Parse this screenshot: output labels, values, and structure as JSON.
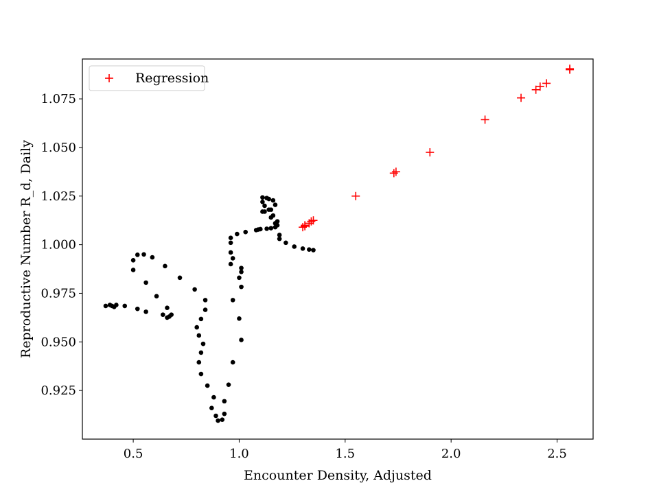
{
  "chart_data": {
    "type": "scatter",
    "title": "",
    "xlabel": "Encounter Density, Adjusted",
    "ylabel": "Reproductive Number R_d, Daily",
    "xlim": [
      0.26,
      2.67
    ],
    "ylim": [
      0.9,
      1.0955
    ],
    "xticks": [
      0.5,
      1.0,
      1.5,
      2.0,
      2.5
    ],
    "xtick_labels": [
      "0.5",
      "1.0",
      "1.5",
      "2.0",
      "2.5"
    ],
    "yticks": [
      0.925,
      0.95,
      0.975,
      1.0,
      1.025,
      1.05,
      1.075
    ],
    "ytick_labels": [
      "0.925",
      "0.950",
      "0.975",
      "1.000",
      "1.025",
      "1.050",
      "1.075"
    ],
    "grid": false,
    "legend_position": "top-left",
    "series": [
      {
        "marker": "circle",
        "color": "#000000",
        "points": [
          [
            0.37,
            0.9685
          ],
          [
            0.39,
            0.969
          ],
          [
            0.4,
            0.9685
          ],
          [
            0.41,
            0.968
          ],
          [
            0.42,
            0.969
          ],
          [
            0.46,
            0.9685
          ],
          [
            0.52,
            0.967
          ],
          [
            0.56,
            0.9655
          ],
          [
            0.64,
            0.964
          ],
          [
            0.66,
            0.9625
          ],
          [
            0.67,
            0.963
          ],
          [
            0.68,
            0.964
          ],
          [
            0.66,
            0.9675
          ],
          [
            0.61,
            0.9735
          ],
          [
            0.56,
            0.9805
          ],
          [
            0.5,
            0.987
          ],
          [
            0.5,
            0.992
          ],
          [
            0.52,
            0.9948
          ],
          [
            0.55,
            0.995
          ],
          [
            0.59,
            0.9935
          ],
          [
            0.65,
            0.989
          ],
          [
            0.72,
            0.983
          ],
          [
            0.79,
            0.977
          ],
          [
            0.84,
            0.9715
          ],
          [
            0.84,
            0.9665
          ],
          [
            0.82,
            0.9618
          ],
          [
            0.8,
            0.9575
          ],
          [
            0.81,
            0.9533
          ],
          [
            0.83,
            0.949
          ],
          [
            0.82,
            0.9445
          ],
          [
            0.81,
            0.9395
          ],
          [
            0.82,
            0.9335
          ],
          [
            0.85,
            0.9275
          ],
          [
            0.88,
            0.9215
          ],
          [
            0.87,
            0.916
          ],
          [
            0.89,
            0.912
          ],
          [
            0.9,
            0.9095
          ],
          [
            0.92,
            0.91
          ],
          [
            0.93,
            0.913
          ],
          [
            0.93,
            0.9195
          ],
          [
            0.95,
            0.928
          ],
          [
            0.97,
            0.9395
          ],
          [
            1.01,
            0.951
          ],
          [
            1.0,
            0.962
          ],
          [
            0.97,
            0.9715
          ],
          [
            1.01,
            0.9783
          ],
          [
            1.01,
            0.986
          ],
          [
            1.01,
            0.988
          ],
          [
            1.0,
            0.983
          ],
          [
            0.97,
            0.993
          ],
          [
            0.96,
            0.99
          ],
          [
            0.96,
            0.996
          ],
          [
            0.96,
            1.001
          ],
          [
            0.96,
            1.0035
          ],
          [
            0.99,
            1.0055
          ],
          [
            1.03,
            1.0065
          ],
          [
            1.08,
            1.0075
          ],
          [
            1.09,
            1.0078
          ],
          [
            1.1,
            1.008
          ],
          [
            1.13,
            1.0082
          ],
          [
            1.15,
            1.0085
          ],
          [
            1.17,
            1.009
          ],
          [
            1.18,
            1.01
          ],
          [
            1.18,
            1.012
          ],
          [
            1.16,
            1.015
          ],
          [
            1.14,
            1.018
          ],
          [
            1.12,
            1.017
          ],
          [
            1.11,
            1.017
          ],
          [
            1.12,
            1.02
          ],
          [
            1.11,
            1.022
          ],
          [
            1.11,
            1.0243
          ],
          [
            1.13,
            1.024
          ],
          [
            1.14,
            1.0235
          ],
          [
            1.16,
            1.0228
          ],
          [
            1.17,
            1.0205
          ],
          [
            1.15,
            1.018
          ],
          [
            1.15,
            1.014
          ],
          [
            1.17,
            1.011
          ],
          [
            1.19,
            1.005
          ],
          [
            1.19,
            1.003
          ],
          [
            1.22,
            1.001
          ],
          [
            1.26,
            0.999
          ],
          [
            1.3,
            0.998
          ],
          [
            1.33,
            0.9975
          ],
          [
            1.35,
            0.9972
          ]
        ]
      },
      {
        "name": "Regression",
        "marker": "plus",
        "color": "#ff0000",
        "points": [
          [
            1.3,
            1.009
          ],
          [
            1.31,
            1.0095
          ],
          [
            1.31,
            1.01
          ],
          [
            1.33,
            1.011
          ],
          [
            1.34,
            1.012
          ],
          [
            1.35,
            1.0125
          ],
          [
            1.55,
            1.025
          ],
          [
            1.73,
            1.0368
          ],
          [
            1.74,
            1.0375
          ],
          [
            1.9,
            1.0475
          ],
          [
            2.16,
            1.0643
          ],
          [
            2.33,
            1.0755
          ],
          [
            2.4,
            1.0797
          ],
          [
            2.42,
            1.0813
          ],
          [
            2.45,
            1.083
          ],
          [
            2.56,
            1.09
          ],
          [
            2.56,
            1.0905
          ]
        ]
      }
    ]
  }
}
